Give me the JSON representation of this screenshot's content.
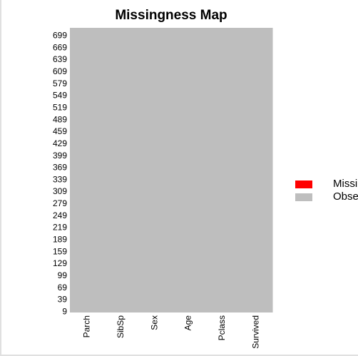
{
  "chart_data": {
    "type": "heatmap",
    "title": "Missingness Map",
    "xlabel": "",
    "ylabel": "",
    "columns": [
      "Parch",
      "SibSp",
      "Sex",
      "Age",
      "Pclass",
      "Survived"
    ],
    "row_tick_labels": [
      "699",
      "669",
      "639",
      "609",
      "579",
      "549",
      "519",
      "489",
      "459",
      "429",
      "399",
      "369",
      "339",
      "309",
      "279",
      "249",
      "219",
      "189",
      "159",
      "129",
      "99",
      "69",
      "39",
      "9"
    ],
    "cell_status": [
      [
        "Observed",
        "Observed",
        "Observed",
        "Observed",
        "Observed",
        "Observed"
      ]
    ],
    "legend": [
      {
        "label": "Missing",
        "color": "#ff0000"
      },
      {
        "label": "Observed",
        "color": "#bebebe"
      }
    ],
    "legend_placement": "right",
    "grid": false
  }
}
